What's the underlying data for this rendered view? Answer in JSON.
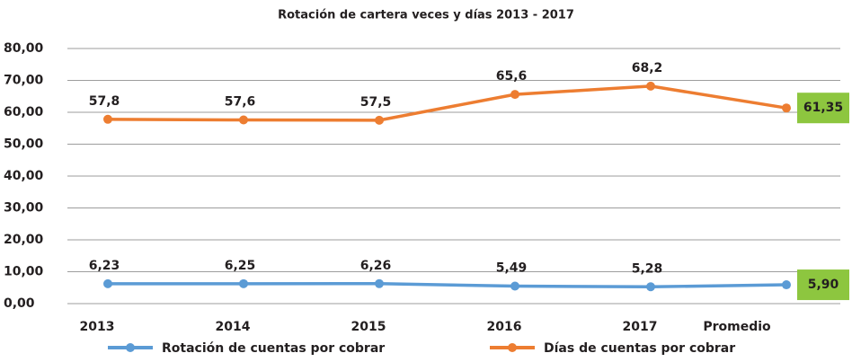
{
  "chart_data": {
    "type": "line",
    "title": "Rotación de cartera veces y días 2013 - 2017",
    "categories": [
      "2013",
      "2014",
      "2015",
      "2016",
      "2017",
      "Promedio"
    ],
    "series": [
      {
        "name": "Rotación de cuentas por cobrar",
        "color": "#5b9bd5",
        "values": [
          6.23,
          6.25,
          6.26,
          5.49,
          5.28,
          5.9
        ],
        "value_labels": [
          "6,23",
          "6,25",
          "6,26",
          "5,49",
          "5,28",
          "5,90"
        ]
      },
      {
        "name": "Días de cuentas por cobrar",
        "color": "#ed7d31",
        "values": [
          57.8,
          57.6,
          57.5,
          65.6,
          68.2,
          61.35
        ],
        "value_labels": [
          "57,8",
          "57,6",
          "57,5",
          "65,6",
          "68,2",
          "61,35"
        ]
      }
    ],
    "ylim": [
      0,
      80
    ],
    "yticks": [
      {
        "value": 0,
        "label": "0,00"
      },
      {
        "value": 10,
        "label": "10,00"
      },
      {
        "value": 20,
        "label": "20,00"
      },
      {
        "value": 30,
        "label": "30,00"
      },
      {
        "value": 40,
        "label": "40,00"
      },
      {
        "value": 50,
        "label": "50,00"
      },
      {
        "value": 60,
        "label": "60,00"
      },
      {
        "value": 70,
        "label": "70,00"
      },
      {
        "value": 80,
        "label": "80,00"
      }
    ],
    "grid": true,
    "legend": "bottom"
  }
}
